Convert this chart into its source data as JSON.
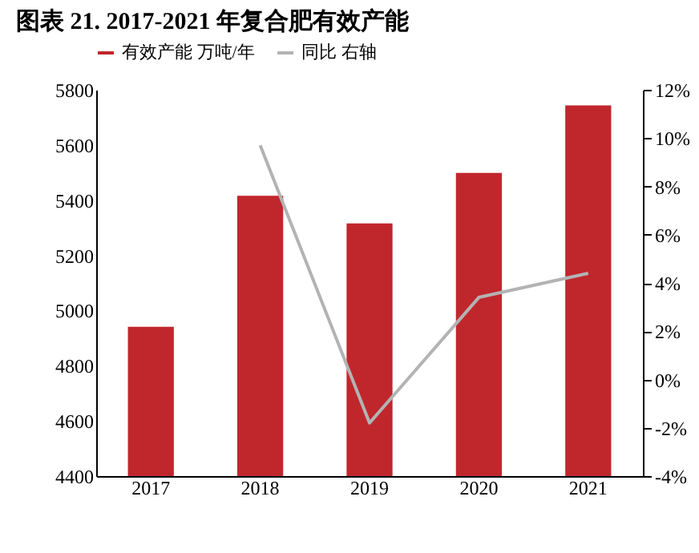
{
  "chart_data": {
    "type": "bar",
    "title": "图表 21. 2017-2021 年复合肥有效产能",
    "categories": [
      "2017",
      "2018",
      "2019",
      "2020",
      "2021"
    ],
    "series": [
      {
        "name": "有效产能 万吨/年",
        "color": "#c0272d",
        "values": [
          4941,
          5416,
          5316,
          5499,
          5743
        ]
      },
      {
        "name": "同比 右轴",
        "type": "line",
        "axis": "y2",
        "color": "#b3b3b3",
        "values": [
          null,
          9.7,
          -1.8,
          3.4,
          4.4
        ]
      }
    ],
    "ylim": [
      4400,
      5800
    ],
    "yticks": [
      4400,
      4600,
      4800,
      5000,
      5200,
      5400,
      5600,
      5800
    ],
    "y2lim": [
      -4,
      12
    ],
    "y2ticks": [
      {
        "value": -4,
        "label": "-4%"
      },
      {
        "value": -2,
        "label": "-2%"
      },
      {
        "value": 0,
        "label": "0%"
      },
      {
        "value": 2,
        "label": "2%"
      },
      {
        "value": 4,
        "label": "4%"
      },
      {
        "value": 6,
        "label": "6%"
      },
      {
        "value": 8,
        "label": "8%"
      },
      {
        "value": 10,
        "label": "10%"
      },
      {
        "value": 12,
        "label": "12%"
      }
    ],
    "grid": false,
    "legend": "top"
  }
}
